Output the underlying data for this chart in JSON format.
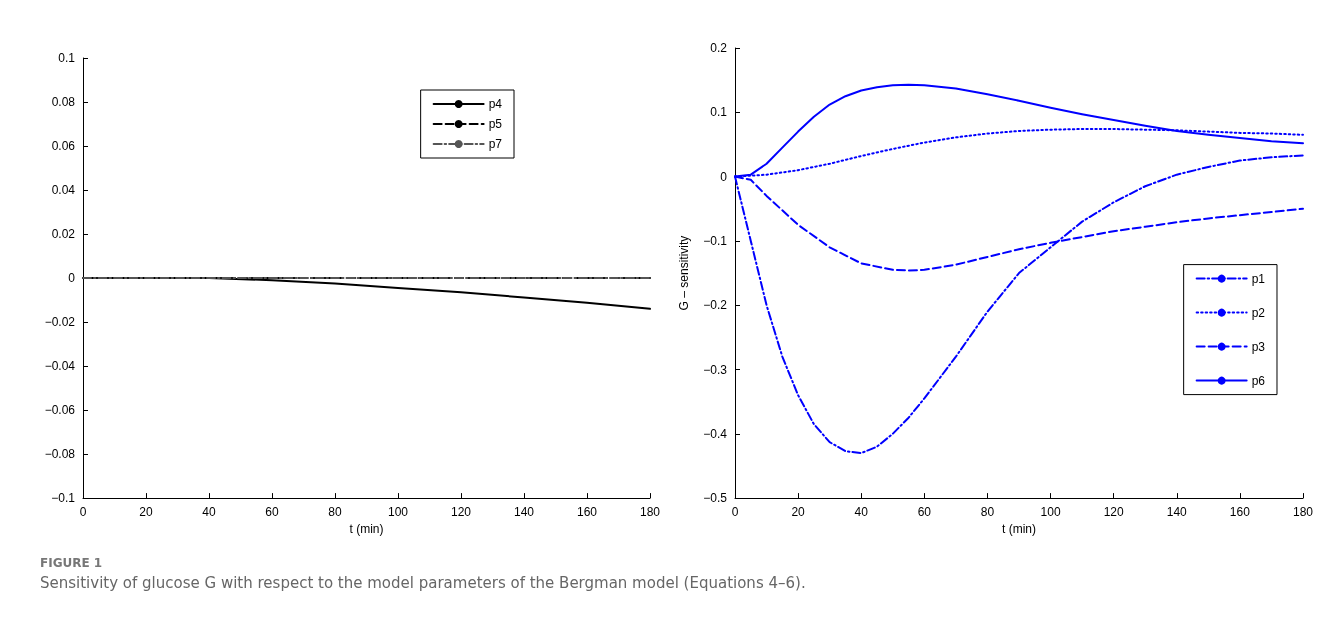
{
  "chart_data": [
    {
      "type": "line",
      "xlabel": "t (min)",
      "xlim": [
        0,
        180
      ],
      "xticks": [
        0,
        20,
        40,
        60,
        80,
        100,
        120,
        140,
        160,
        180
      ],
      "ylim": [
        -0.1,
        0.1
      ],
      "yticks": [
        -0.1,
        -0.08,
        -0.06,
        -0.04,
        -0.02,
        0,
        0.02,
        0.04,
        0.06,
        0.08,
        0.1
      ],
      "grid": false,
      "legend": "top right",
      "marker": "none",
      "series": [
        {
          "name": "p4",
          "color": "#000000",
          "line_style": "solid",
          "x": [
            0,
            20,
            40,
            60,
            80,
            100,
            120,
            140,
            160,
            180
          ],
          "values": [
            0,
            0,
            0,
            -0.001,
            -0.0025,
            -0.0045,
            -0.0065,
            -0.0088,
            -0.0112,
            -0.014
          ]
        },
        {
          "name": "p5",
          "color": "#000000",
          "line_style": "dashed",
          "x": [
            0,
            180
          ],
          "values": [
            0,
            0
          ]
        },
        {
          "name": "p7",
          "color": "#555555",
          "line_style": "dashdot",
          "x": [
            0,
            180
          ],
          "values": [
            0,
            0
          ]
        }
      ],
      "annotations": [
        "FIGURE 1",
        "Sensitivity of glucose G with respect to the model parameters of the Bergman model (Equations 4–6)."
      ]
    },
    {
      "type": "line",
      "xlabel": "t (min)",
      "ylabel": "G – sensitivity",
      "xlim": [
        0,
        180
      ],
      "xticks": [
        0,
        20,
        40,
        60,
        80,
        100,
        120,
        140,
        160,
        180
      ],
      "ylim": [
        -0.5,
        0.2
      ],
      "yticks": [
        -0.5,
        -0.4,
        -0.3,
        -0.2,
        -0.1,
        0,
        0.1,
        0.2
      ],
      "grid": false,
      "legend": "right",
      "marker": "none",
      "series": [
        {
          "name": "p1",
          "color": "#0000ff",
          "line_style": "dashdot",
          "x": [
            0,
            2,
            5,
            10,
            15,
            20,
            25,
            30,
            35,
            40,
            45,
            50,
            55,
            60,
            70,
            80,
            90,
            100,
            110,
            120,
            130,
            140,
            150,
            160,
            170,
            180
          ],
          "values": [
            0,
            -0.04,
            -0.1,
            -0.2,
            -0.28,
            -0.34,
            -0.385,
            -0.413,
            -0.427,
            -0.43,
            -0.42,
            -0.4,
            -0.375,
            -0.345,
            -0.28,
            -0.21,
            -0.15,
            -0.11,
            -0.07,
            -0.04,
            -0.015,
            0.003,
            0.015,
            0.025,
            0.03,
            0.033
          ]
        },
        {
          "name": "p2",
          "color": "#0000ff",
          "line_style": "dotted",
          "x": [
            0,
            10,
            20,
            30,
            40,
            50,
            60,
            70,
            80,
            90,
            100,
            110,
            120,
            130,
            140,
            150,
            160,
            170,
            180
          ],
          "values": [
            0,
            0.003,
            0.01,
            0.02,
            0.032,
            0.043,
            0.053,
            0.061,
            0.067,
            0.071,
            0.073,
            0.074,
            0.074,
            0.073,
            0.072,
            0.07,
            0.068,
            0.067,
            0.065
          ]
        },
        {
          "name": "p3",
          "color": "#0000ff",
          "line_style": "dashed",
          "x": [
            0,
            5,
            10,
            20,
            30,
            40,
            50,
            55,
            60,
            70,
            80,
            90,
            100,
            110,
            120,
            130,
            140,
            150,
            160,
            170,
            180
          ],
          "values": [
            0,
            -0.005,
            -0.03,
            -0.075,
            -0.11,
            -0.135,
            -0.145,
            -0.146,
            -0.145,
            -0.137,
            -0.125,
            -0.113,
            -0.103,
            -0.094,
            -0.085,
            -0.078,
            -0.071,
            -0.065,
            -0.06,
            -0.055,
            -0.05
          ]
        },
        {
          "name": "p6",
          "color": "#0000ff",
          "line_style": "solid",
          "x": [
            0,
            5,
            10,
            15,
            20,
            25,
            30,
            35,
            40,
            45,
            50,
            55,
            60,
            70,
            80,
            90,
            100,
            110,
            120,
            130,
            140,
            150,
            160,
            170,
            180
          ],
          "values": [
            0,
            0.003,
            0.02,
            0.045,
            0.07,
            0.093,
            0.112,
            0.125,
            0.134,
            0.139,
            0.142,
            0.143,
            0.142,
            0.137,
            0.128,
            0.118,
            0.107,
            0.097,
            0.088,
            0.079,
            0.071,
            0.065,
            0.06,
            0.055,
            0.052
          ]
        }
      ]
    }
  ]
}
